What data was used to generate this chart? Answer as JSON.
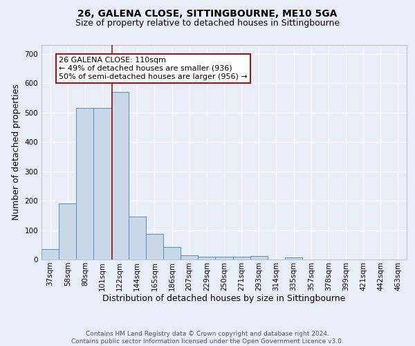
{
  "title": "26, GALENA CLOSE, SITTINGBOURNE, ME10 5GA",
  "subtitle": "Size of property relative to detached houses in Sittingbourne",
  "xlabel": "Distribution of detached houses by size in Sittingbourne",
  "ylabel": "Number of detached properties",
  "footnote1": "Contains HM Land Registry data © Crown copyright and database right 2024.",
  "footnote2": "Contains public sector information licensed under the Open Government Licence v3.0.",
  "categories": [
    "37sqm",
    "58sqm",
    "80sqm",
    "101sqm",
    "122sqm",
    "144sqm",
    "165sqm",
    "186sqm",
    "207sqm",
    "229sqm",
    "250sqm",
    "271sqm",
    "293sqm",
    "314sqm",
    "335sqm",
    "357sqm",
    "378sqm",
    "399sqm",
    "421sqm",
    "442sqm",
    "463sqm"
  ],
  "values": [
    35,
    190,
    515,
    515,
    570,
    145,
    88,
    42,
    15,
    10,
    10,
    10,
    11,
    0,
    7,
    0,
    0,
    0,
    0,
    0,
    0
  ],
  "bar_color": "#c8d8e8",
  "bar_edge_color": "#5b8db8",
  "highlight_line_color": "#aa1111",
  "annotation_text": "26 GALENA CLOSE: 110sqm\n← 49% of detached houses are smaller (936)\n50% of semi-detached houses are larger (956) →",
  "annotation_box_color": "white",
  "annotation_box_edge": "#aa1111",
  "ylim": [
    0,
    730
  ],
  "yticks": [
    0,
    100,
    200,
    300,
    400,
    500,
    600,
    700
  ],
  "background_color": "#e8eef8",
  "grid_color": "#ffffff",
  "title_fontsize": 10,
  "subtitle_fontsize": 9,
  "axis_label_fontsize": 9,
  "tick_fontsize": 7.5,
  "annotation_fontsize": 8,
  "footnote_fontsize": 6.5
}
